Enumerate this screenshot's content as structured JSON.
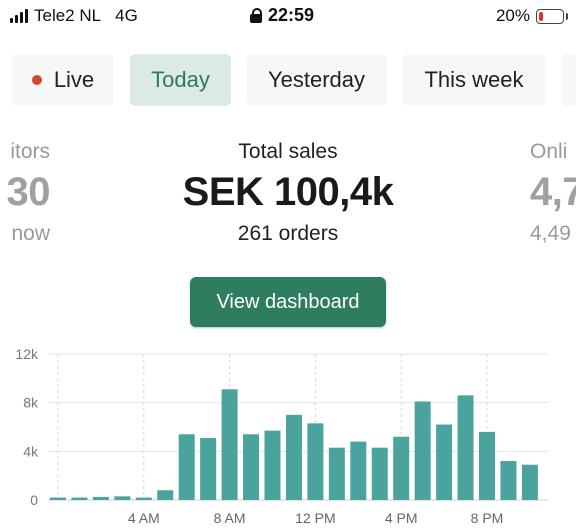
{
  "status_bar": {
    "carrier": "Tele2 NL",
    "network": "4G",
    "time": "22:59",
    "battery": "20%",
    "battery_level": 0.2,
    "battery_color": "#e0302b"
  },
  "tabs": [
    {
      "label": "Live",
      "active": false,
      "dot_color": "#d9432f"
    },
    {
      "label": "Today",
      "active": true
    },
    {
      "label": "Yesterday",
      "active": false
    },
    {
      "label": "This week",
      "active": false
    }
  ],
  "metrics": {
    "left": {
      "label": "itors",
      "value": "30",
      "sub": "now"
    },
    "center": {
      "label": "Total sales",
      "value": "SEK 100,4k",
      "sub": "261 orders"
    },
    "right": {
      "label": "Onli",
      "value": "4,7",
      "sub": "4,49"
    }
  },
  "dashboard_button": {
    "label": "View dashboard"
  },
  "colors": {
    "accent": "#2f7d5f",
    "bar": "#4aa39c",
    "active_tab_bg": "#dbeae4",
    "active_tab_text": "#2d7a5c"
  },
  "chart_data": {
    "type": "bar",
    "ylim": [
      0,
      12000
    ],
    "yticks": [
      0,
      4000,
      8000,
      12000
    ],
    "ytick_labels": [
      "0",
      "4k",
      "8k",
      "12k"
    ],
    "hours": [
      0,
      1,
      2,
      3,
      4,
      5,
      6,
      7,
      8,
      9,
      10,
      11,
      12,
      13,
      14,
      15,
      16,
      17,
      18,
      19,
      20,
      21,
      22
    ],
    "values": [
      200,
      200,
      250,
      300,
      200,
      800,
      5400,
      5100,
      9100,
      5400,
      5700,
      7000,
      6300,
      4300,
      4800,
      4300,
      5200,
      8100,
      6200,
      8600,
      5600,
      3200,
      2900
    ],
    "xticks": [
      {
        "hour": 4,
        "label": "4 AM"
      },
      {
        "hour": 8,
        "label": "8 AM"
      },
      {
        "hour": 12,
        "label": "12 PM"
      },
      {
        "hour": 16,
        "label": "4 PM"
      },
      {
        "hour": 20,
        "label": "8 PM"
      }
    ],
    "grid": true
  }
}
